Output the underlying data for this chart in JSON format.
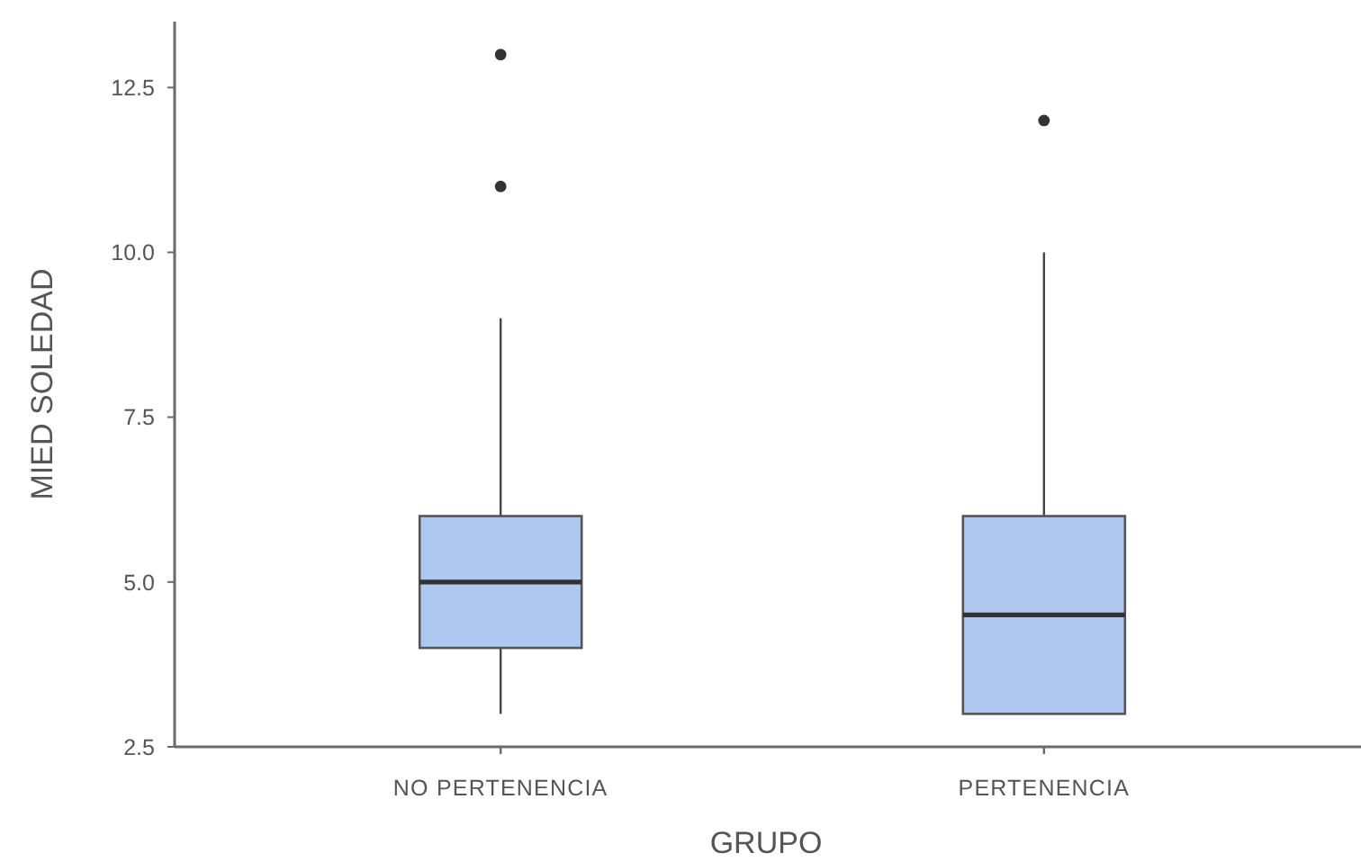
{
  "chart_data": {
    "type": "box",
    "xlabel": "GRUPO",
    "ylabel": "MIED SOLEDAD",
    "categories": [
      "NO PERTENENCIA",
      "PERTENENCIA"
    ],
    "color": "#aec8f0",
    "boxes": [
      {
        "low": 3,
        "q1": 4,
        "median": 5,
        "q3": 6,
        "high": 9,
        "outliers": [
          11,
          13
        ]
      },
      {
        "low": 3,
        "q1": 3,
        "median": 4.5,
        "q3": 6,
        "high": 10,
        "outliers": [
          12
        ]
      }
    ],
    "ylim": [
      2.5,
      13.5
    ],
    "yticks": [
      2.5,
      {
        "value": 5,
        "label": "5.0"
      },
      7.5,
      {
        "value": 10,
        "label": "10.0"
      },
      12.5
    ]
  }
}
